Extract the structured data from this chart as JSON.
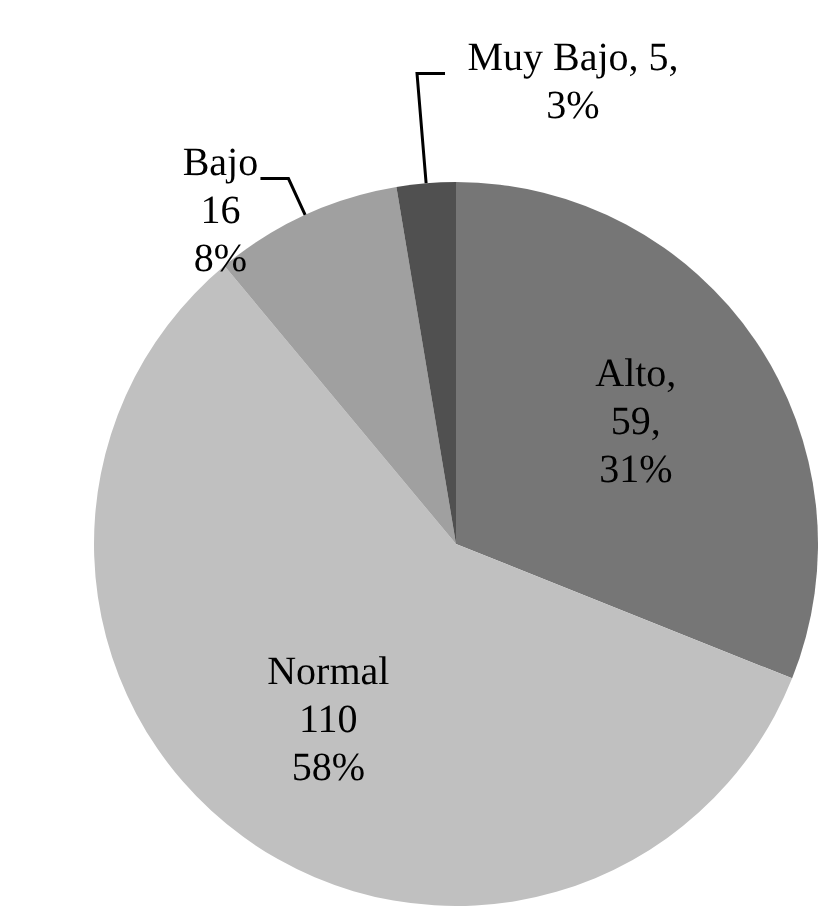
{
  "chart_data": {
    "type": "pie",
    "categories": [
      "Alto",
      "Normal",
      "Bajo",
      "Muy Bajo"
    ],
    "values": [
      59,
      110,
      16,
      5
    ],
    "colors": [
      "#767676",
      "#c0c0c0",
      "#a0a0a0",
      "#505050"
    ],
    "value_labels": [
      ",\n59,\n31%",
      "\n110\n58%",
      "\n16\n8%",
      ", 5,\n3%"
    ],
    "legend": false
  }
}
